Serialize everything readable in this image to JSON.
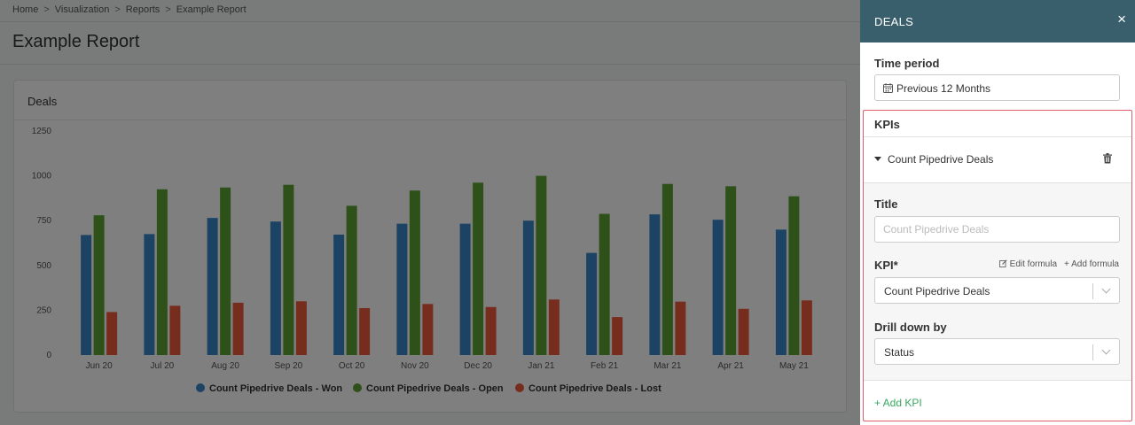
{
  "breadcrumb": [
    "Home",
    "Visualization",
    "Reports",
    "Example Report"
  ],
  "breadcrumb_sep": ">",
  "page_title": "Example Report",
  "card": {
    "title": "Deals"
  },
  "chart_data": {
    "type": "bar",
    "categories": [
      "Jun 20",
      "Jul 20",
      "Aug 20",
      "Sep 20",
      "Oct 20",
      "Nov 20",
      "Dec 20",
      "Jan 21",
      "Feb 21",
      "Mar 21",
      "Apr 21",
      "May 21"
    ],
    "series": [
      {
        "name": "Count Pipedrive Deals - Won",
        "color": "#3a87c8",
        "values": [
          670,
          675,
          765,
          745,
          672,
          733,
          733,
          750,
          570,
          785,
          755,
          700
        ]
      },
      {
        "name": "Count Pipedrive Deals - Open",
        "color": "#5da132",
        "values": [
          780,
          925,
          935,
          950,
          833,
          918,
          962,
          1000,
          788,
          955,
          942,
          886
        ]
      },
      {
        "name": "Count Pipedrive Deals - Lost",
        "color": "#ef5a3a",
        "values": [
          240,
          275,
          292,
          300,
          262,
          285,
          268,
          310,
          212,
          298,
          258,
          305
        ]
      }
    ],
    "yticks": [
      0,
      250,
      500,
      750,
      1000,
      1250
    ],
    "ylim": [
      0,
      1250
    ],
    "legend_position": "bottom"
  },
  "panel": {
    "header_title": "DEALS",
    "close_icon": "×",
    "time_period_label": "Time period",
    "time_period_value": "Previous 12 Months",
    "kpis_label": "KPIs",
    "kpi_item_name": "Count Pipedrive Deals",
    "title_label": "Title",
    "title_placeholder": "Count Pipedrive Deals",
    "kpi_label": "KPI*",
    "edit_formula": "Edit formula",
    "add_formula": "+ Add formula",
    "kpi_value": "Count Pipedrive Deals",
    "drill_label": "Drill down by",
    "drill_value": "Status",
    "add_kpi": "+ Add KPI"
  }
}
